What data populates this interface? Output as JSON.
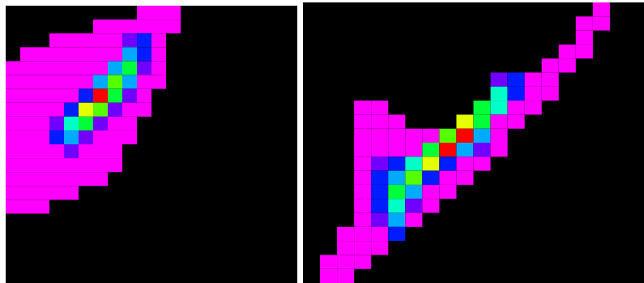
{
  "chart_data": [
    {
      "type": "heatmap",
      "xlim": [
        0,
        20
      ],
      "ylim": [
        0,
        20
      ],
      "tick_labels": false,
      "grid": false,
      "color_range": [
        1,
        10
      ],
      "cells": [
        [
          9,
          19,
          1
        ],
        [
          10,
          19,
          1
        ],
        [
          11,
          19,
          1
        ],
        [
          6,
          18,
          1
        ],
        [
          7,
          18,
          1
        ],
        [
          8,
          18,
          1
        ],
        [
          9,
          18,
          1
        ],
        [
          10,
          18,
          1
        ],
        [
          11,
          18,
          1
        ],
        [
          3,
          17,
          1
        ],
        [
          4,
          17,
          1
        ],
        [
          5,
          17,
          1
        ],
        [
          6,
          17,
          1
        ],
        [
          7,
          17,
          1
        ],
        [
          8,
          17,
          2
        ],
        [
          9,
          17,
          3
        ],
        [
          10,
          17,
          1
        ],
        [
          1,
          16,
          1
        ],
        [
          2,
          16,
          1
        ],
        [
          3,
          16,
          1
        ],
        [
          4,
          16,
          1
        ],
        [
          5,
          16,
          1
        ],
        [
          6,
          16,
          1
        ],
        [
          7,
          16,
          1
        ],
        [
          8,
          16,
          4
        ],
        [
          9,
          16,
          3
        ],
        [
          10,
          16,
          1
        ],
        [
          0,
          15,
          1
        ],
        [
          1,
          15,
          1
        ],
        [
          2,
          15,
          1
        ],
        [
          3,
          15,
          1
        ],
        [
          4,
          15,
          1
        ],
        [
          5,
          15,
          1
        ],
        [
          6,
          15,
          1
        ],
        [
          7,
          15,
          4
        ],
        [
          8,
          15,
          6
        ],
        [
          9,
          15,
          2
        ],
        [
          10,
          15,
          1
        ],
        [
          0,
          14,
          1
        ],
        [
          1,
          14,
          1
        ],
        [
          2,
          14,
          1
        ],
        [
          3,
          14,
          1
        ],
        [
          4,
          14,
          1
        ],
        [
          5,
          14,
          1
        ],
        [
          6,
          14,
          4
        ],
        [
          7,
          14,
          7
        ],
        [
          8,
          14,
          4
        ],
        [
          9,
          14,
          1
        ],
        [
          10,
          14,
          1
        ],
        [
          0,
          13,
          1
        ],
        [
          1,
          13,
          1
        ],
        [
          2,
          13,
          1
        ],
        [
          3,
          13,
          1
        ],
        [
          4,
          13,
          1
        ],
        [
          5,
          13,
          3
        ],
        [
          6,
          13,
          10
        ],
        [
          7,
          13,
          6
        ],
        [
          8,
          13,
          2
        ],
        [
          9,
          13,
          1
        ],
        [
          0,
          12,
          1
        ],
        [
          1,
          12,
          1
        ],
        [
          2,
          12,
          1
        ],
        [
          3,
          12,
          1
        ],
        [
          4,
          12,
          3
        ],
        [
          5,
          12,
          8
        ],
        [
          6,
          12,
          7
        ],
        [
          7,
          12,
          2
        ],
        [
          8,
          12,
          1
        ],
        [
          9,
          12,
          1
        ],
        [
          0,
          11,
          1
        ],
        [
          1,
          11,
          1
        ],
        [
          2,
          11,
          1
        ],
        [
          3,
          11,
          2
        ],
        [
          4,
          11,
          5
        ],
        [
          5,
          11,
          6
        ],
        [
          6,
          11,
          2
        ],
        [
          7,
          11,
          1
        ],
        [
          8,
          11,
          1
        ],
        [
          0,
          10,
          1
        ],
        [
          1,
          10,
          1
        ],
        [
          2,
          10,
          1
        ],
        [
          3,
          10,
          3
        ],
        [
          4,
          10,
          4
        ],
        [
          5,
          10,
          2
        ],
        [
          6,
          10,
          1
        ],
        [
          7,
          10,
          1
        ],
        [
          8,
          10,
          1
        ],
        [
          0,
          9,
          1
        ],
        [
          1,
          9,
          1
        ],
        [
          2,
          9,
          1
        ],
        [
          3,
          9,
          1
        ],
        [
          4,
          9,
          2
        ],
        [
          5,
          9,
          1
        ],
        [
          6,
          9,
          1
        ],
        [
          7,
          9,
          1
        ],
        [
          0,
          8,
          1
        ],
        [
          1,
          8,
          1
        ],
        [
          2,
          8,
          1
        ],
        [
          3,
          8,
          1
        ],
        [
          4,
          8,
          1
        ],
        [
          5,
          8,
          1
        ],
        [
          6,
          8,
          1
        ],
        [
          7,
          8,
          1
        ],
        [
          0,
          7,
          1
        ],
        [
          1,
          7,
          1
        ],
        [
          2,
          7,
          1
        ],
        [
          3,
          7,
          1
        ],
        [
          4,
          7,
          1
        ],
        [
          5,
          7,
          1
        ],
        [
          6,
          7,
          1
        ],
        [
          0,
          6,
          1
        ],
        [
          1,
          6,
          1
        ],
        [
          2,
          6,
          1
        ],
        [
          3,
          6,
          1
        ],
        [
          4,
          6,
          1
        ],
        [
          0,
          5,
          1
        ],
        [
          1,
          5,
          1
        ],
        [
          2,
          5,
          1
        ]
      ]
    },
    {
      "type": "heatmap",
      "xlim": [
        0,
        20
      ],
      "ylim": [
        0,
        20
      ],
      "tick_labels": false,
      "grid": false,
      "color_range": [
        1,
        10
      ],
      "cells": [
        [
          17,
          19,
          1
        ],
        [
          16,
          18,
          1
        ],
        [
          17,
          18,
          1
        ],
        [
          16,
          17,
          1
        ],
        [
          15,
          16,
          1
        ],
        [
          16,
          16,
          1
        ],
        [
          14,
          15,
          1
        ],
        [
          15,
          15,
          1
        ],
        [
          11,
          14,
          2
        ],
        [
          12,
          14,
          3
        ],
        [
          13,
          14,
          1
        ],
        [
          14,
          14,
          1
        ],
        [
          11,
          13,
          5
        ],
        [
          12,
          13,
          3
        ],
        [
          13,
          13,
          1
        ],
        [
          14,
          13,
          1
        ],
        [
          3,
          12,
          1
        ],
        [
          4,
          12,
          1
        ],
        [
          10,
          12,
          6
        ],
        [
          11,
          12,
          5
        ],
        [
          12,
          12,
          1
        ],
        [
          13,
          12,
          1
        ],
        [
          3,
          11,
          1
        ],
        [
          4,
          11,
          1
        ],
        [
          5,
          11,
          1
        ],
        [
          9,
          11,
          8
        ],
        [
          10,
          11,
          6
        ],
        [
          11,
          11,
          1
        ],
        [
          12,
          11,
          1
        ],
        [
          3,
          10,
          1
        ],
        [
          4,
          10,
          1
        ],
        [
          5,
          10,
          1
        ],
        [
          6,
          10,
          1
        ],
        [
          7,
          10,
          1
        ],
        [
          8,
          10,
          7
        ],
        [
          9,
          10,
          10
        ],
        [
          10,
          10,
          4
        ],
        [
          11,
          10,
          1
        ],
        [
          3,
          9,
          1
        ],
        [
          4,
          9,
          1
        ],
        [
          5,
          9,
          1
        ],
        [
          6,
          9,
          1
        ],
        [
          7,
          9,
          6
        ],
        [
          8,
          9,
          10
        ],
        [
          9,
          9,
          4
        ],
        [
          10,
          9,
          2
        ],
        [
          11,
          9,
          1
        ],
        [
          3,
          8,
          1
        ],
        [
          4,
          8,
          2
        ],
        [
          5,
          8,
          3
        ],
        [
          6,
          8,
          5
        ],
        [
          7,
          8,
          8
        ],
        [
          8,
          8,
          3
        ],
        [
          9,
          8,
          1
        ],
        [
          10,
          8,
          1
        ],
        [
          3,
          7,
          1
        ],
        [
          4,
          7,
          3
        ],
        [
          5,
          7,
          4
        ],
        [
          6,
          7,
          7
        ],
        [
          7,
          7,
          3
        ],
        [
          8,
          7,
          1
        ],
        [
          9,
          7,
          1
        ],
        [
          3,
          6,
          1
        ],
        [
          4,
          6,
          3
        ],
        [
          5,
          6,
          6
        ],
        [
          6,
          6,
          4
        ],
        [
          7,
          6,
          1
        ],
        [
          8,
          6,
          1
        ],
        [
          3,
          5,
          1
        ],
        [
          4,
          5,
          3
        ],
        [
          5,
          5,
          5
        ],
        [
          6,
          5,
          2
        ],
        [
          7,
          5,
          1
        ],
        [
          3,
          4,
          1
        ],
        [
          4,
          4,
          2
        ],
        [
          5,
          4,
          4
        ],
        [
          6,
          4,
          1
        ],
        [
          2,
          3,
          1
        ],
        [
          3,
          3,
          1
        ],
        [
          4,
          3,
          1
        ],
        [
          5,
          3,
          3
        ],
        [
          2,
          2,
          1
        ],
        [
          3,
          2,
          1
        ],
        [
          4,
          2,
          1
        ],
        [
          1,
          1,
          1
        ],
        [
          2,
          1,
          1
        ],
        [
          3,
          1,
          1
        ],
        [
          1,
          0,
          1
        ],
        [
          2,
          0,
          1
        ]
      ]
    }
  ]
}
